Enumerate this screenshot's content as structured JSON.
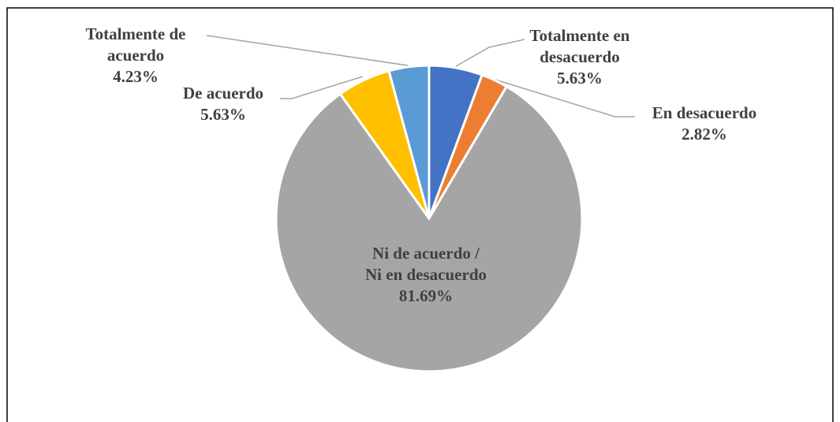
{
  "chart_data": {
    "type": "pie",
    "categories": [
      "Totalmente en desacuerdo",
      "En desacuerdo",
      "Ni de acuerdo / Ni en desacuerdo",
      "De acuerdo",
      "Totalmente de acuerdo"
    ],
    "values": [
      5.63,
      2.82,
      81.69,
      5.63,
      4.23
    ],
    "value_labels": [
      "5.63%",
      "2.82%",
      "81.69%",
      "5.63%",
      "4.23%"
    ],
    "colors": [
      "#4472c4",
      "#ed7d31",
      "#a5a5a5",
      "#ffc000",
      "#5b9bd5"
    ]
  }
}
